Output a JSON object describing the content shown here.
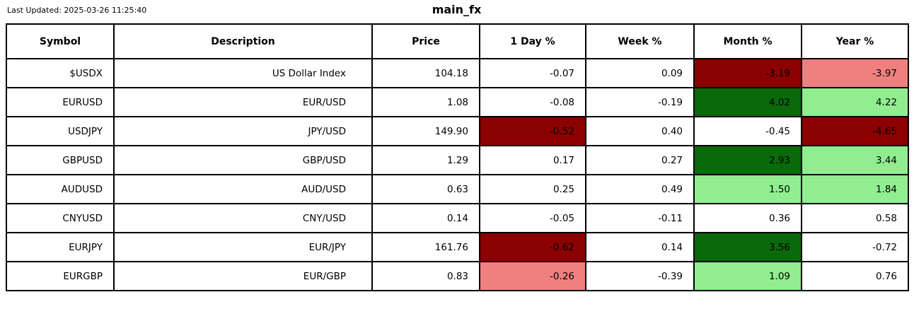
{
  "page": {
    "last_updated": "Last Updated: 2025-03-26 11:25:40",
    "title": "main_fx"
  },
  "colors": {
    "dark_red": "#8B0000",
    "light_red": "#F08080",
    "dark_green": "#0A690A",
    "light_green": "#90EE90",
    "white": "#FFFFFF",
    "border": "#000000"
  },
  "table": {
    "columns": [
      "Symbol",
      "Description",
      "Price",
      "1 Day %",
      "Week %",
      "Month %",
      "Year %"
    ],
    "rows": [
      {
        "symbol": "$USDX",
        "description": "US Dollar Index",
        "price": "104.18",
        "day": {
          "value": "-0.07",
          "bg": "white"
        },
        "week": {
          "value": "0.09",
          "bg": "white"
        },
        "month": {
          "value": "-3.19",
          "bg": "dark_red"
        },
        "year": {
          "value": "-3.97",
          "bg": "light_red"
        }
      },
      {
        "symbol": "EURUSD",
        "description": "EUR/USD",
        "price": "1.08",
        "day": {
          "value": "-0.08",
          "bg": "white"
        },
        "week": {
          "value": "-0.19",
          "bg": "white"
        },
        "month": {
          "value": "4.02",
          "bg": "dark_green"
        },
        "year": {
          "value": "4.22",
          "bg": "light_green"
        }
      },
      {
        "symbol": "USDJPY",
        "description": "JPY/USD",
        "price": "149.90",
        "day": {
          "value": "-0.52",
          "bg": "dark_red"
        },
        "week": {
          "value": "0.40",
          "bg": "white"
        },
        "month": {
          "value": "-0.45",
          "bg": "white"
        },
        "year": {
          "value": "-4.65",
          "bg": "dark_red"
        }
      },
      {
        "symbol": "GBPUSD",
        "description": "GBP/USD",
        "price": "1.29",
        "day": {
          "value": "0.17",
          "bg": "white"
        },
        "week": {
          "value": "0.27",
          "bg": "white"
        },
        "month": {
          "value": "2.93",
          "bg": "dark_green"
        },
        "year": {
          "value": "3.44",
          "bg": "light_green"
        }
      },
      {
        "symbol": "AUDUSD",
        "description": "AUD/USD",
        "price": "0.63",
        "day": {
          "value": "0.25",
          "bg": "white"
        },
        "week": {
          "value": "0.49",
          "bg": "white"
        },
        "month": {
          "value": "1.50",
          "bg": "light_green"
        },
        "year": {
          "value": "1.84",
          "bg": "light_green"
        }
      },
      {
        "symbol": "CNYUSD",
        "description": "CNY/USD",
        "price": "0.14",
        "day": {
          "value": "-0.05",
          "bg": "white"
        },
        "week": {
          "value": "-0.11",
          "bg": "white"
        },
        "month": {
          "value": "0.36",
          "bg": "white"
        },
        "year": {
          "value": "0.58",
          "bg": "white"
        }
      },
      {
        "symbol": "EURJPY",
        "description": "EUR/JPY",
        "price": "161.76",
        "day": {
          "value": "-0.62",
          "bg": "dark_red"
        },
        "week": {
          "value": "0.14",
          "bg": "white"
        },
        "month": {
          "value": "3.56",
          "bg": "dark_green"
        },
        "year": {
          "value": "-0.72",
          "bg": "white"
        }
      },
      {
        "symbol": "EURGBP",
        "description": "EUR/GBP",
        "price": "0.83",
        "day": {
          "value": "-0.26",
          "bg": "light_red"
        },
        "week": {
          "value": "-0.39",
          "bg": "white"
        },
        "month": {
          "value": "1.09",
          "bg": "light_green"
        },
        "year": {
          "value": "0.76",
          "bg": "white"
        }
      }
    ]
  },
  "chart_data": {
    "type": "table",
    "title": "main_fx",
    "last_updated": "2025-03-26 11:25:40",
    "columns": [
      "Symbol",
      "Description",
      "Price",
      "1 Day %",
      "Week %",
      "Month %",
      "Year %"
    ],
    "rows": [
      [
        "$USDX",
        "US Dollar Index",
        104.18,
        -0.07,
        0.09,
        -3.19,
        -3.97
      ],
      [
        "EURUSD",
        "EUR/USD",
        1.08,
        -0.08,
        -0.19,
        4.02,
        4.22
      ],
      [
        "USDJPY",
        "JPY/USD",
        149.9,
        -0.52,
        0.4,
        -0.45,
        -4.65
      ],
      [
        "GBPUSD",
        "GBP/USD",
        1.29,
        0.17,
        0.27,
        2.93,
        3.44
      ],
      [
        "AUDUSD",
        "AUD/USD",
        0.63,
        0.25,
        0.49,
        1.5,
        1.84
      ],
      [
        "CNYUSD",
        "CNY/USD",
        0.14,
        -0.05,
        -0.11,
        0.36,
        0.58
      ],
      [
        "EURJPY",
        "EUR/JPY",
        161.76,
        -0.62,
        0.14,
        3.56,
        -0.72
      ],
      [
        "EURGBP",
        "EUR/GBP",
        0.83,
        -0.26,
        -0.39,
        1.09,
        0.76
      ]
    ],
    "highlight_colors": {
      "dark_red": "#8B0000",
      "light_red": "#F08080",
      "dark_green": "#0A690A",
      "light_green": "#90EE90"
    }
  }
}
